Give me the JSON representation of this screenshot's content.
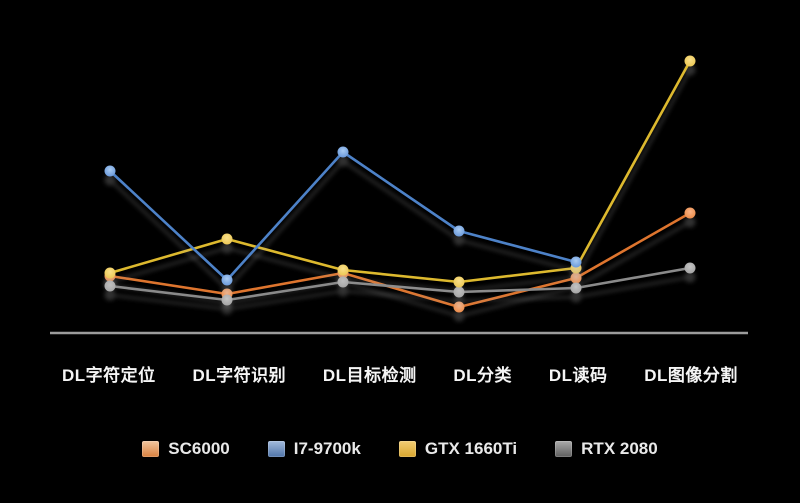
{
  "chart_data": {
    "type": "line",
    "title": "",
    "xlabel": "",
    "ylabel": "",
    "value_note": "no numeric value axis shown in image; values are relative heights above the baseline axis",
    "ylim": [
      0,
      290
    ],
    "grid": false,
    "legend_position": "bottom",
    "axis_line_color": "#9C9C9C",
    "background_color": "#000000",
    "categories": [
      "DL字符定位",
      "DL字符识别",
      "DL目标检测",
      "DL分类",
      "DL读码",
      "DL图像分割"
    ],
    "series": [
      {
        "name": "SC6000",
        "line_color": "#DE742F",
        "dot_center_color": "#FAB385",
        "dot_edge_color": "#E8853F",
        "legend_gradient_top": "#F2C7A0",
        "legend_gradient_bottom": "#D9803E",
        "values": [
          57,
          39,
          60,
          26,
          55,
          120
        ]
      },
      {
        "name": "I7-9700k",
        "line_color": "#4E82C8",
        "dot_center_color": "#A9CBF2",
        "dot_edge_color": "#5E90D6",
        "legend_gradient_top": "#A3BBDC",
        "legend_gradient_bottom": "#4F74A8",
        "values": [
          162,
          53,
          181,
          102,
          71,
          null
        ]
      },
      {
        "name": "GTX 1660Ti",
        "line_color": "#DDB92F",
        "dot_center_color": "#FAE08A",
        "dot_edge_color": "#E8C24A",
        "legend_gradient_top": "#F2CD74",
        "legend_gradient_bottom": "#D9A62E",
        "values": [
          60,
          94,
          63,
          51,
          65,
          272
        ]
      },
      {
        "name": "RTX 2080",
        "line_color": "#8A8A8A",
        "dot_center_color": "#C4C4C4",
        "dot_edge_color": "#9E9E9E",
        "legend_gradient_top": "#ABABAB",
        "legend_gradient_bottom": "#5E5E5E",
        "values": [
          47,
          33,
          51,
          41,
          45,
          65
        ]
      }
    ]
  }
}
